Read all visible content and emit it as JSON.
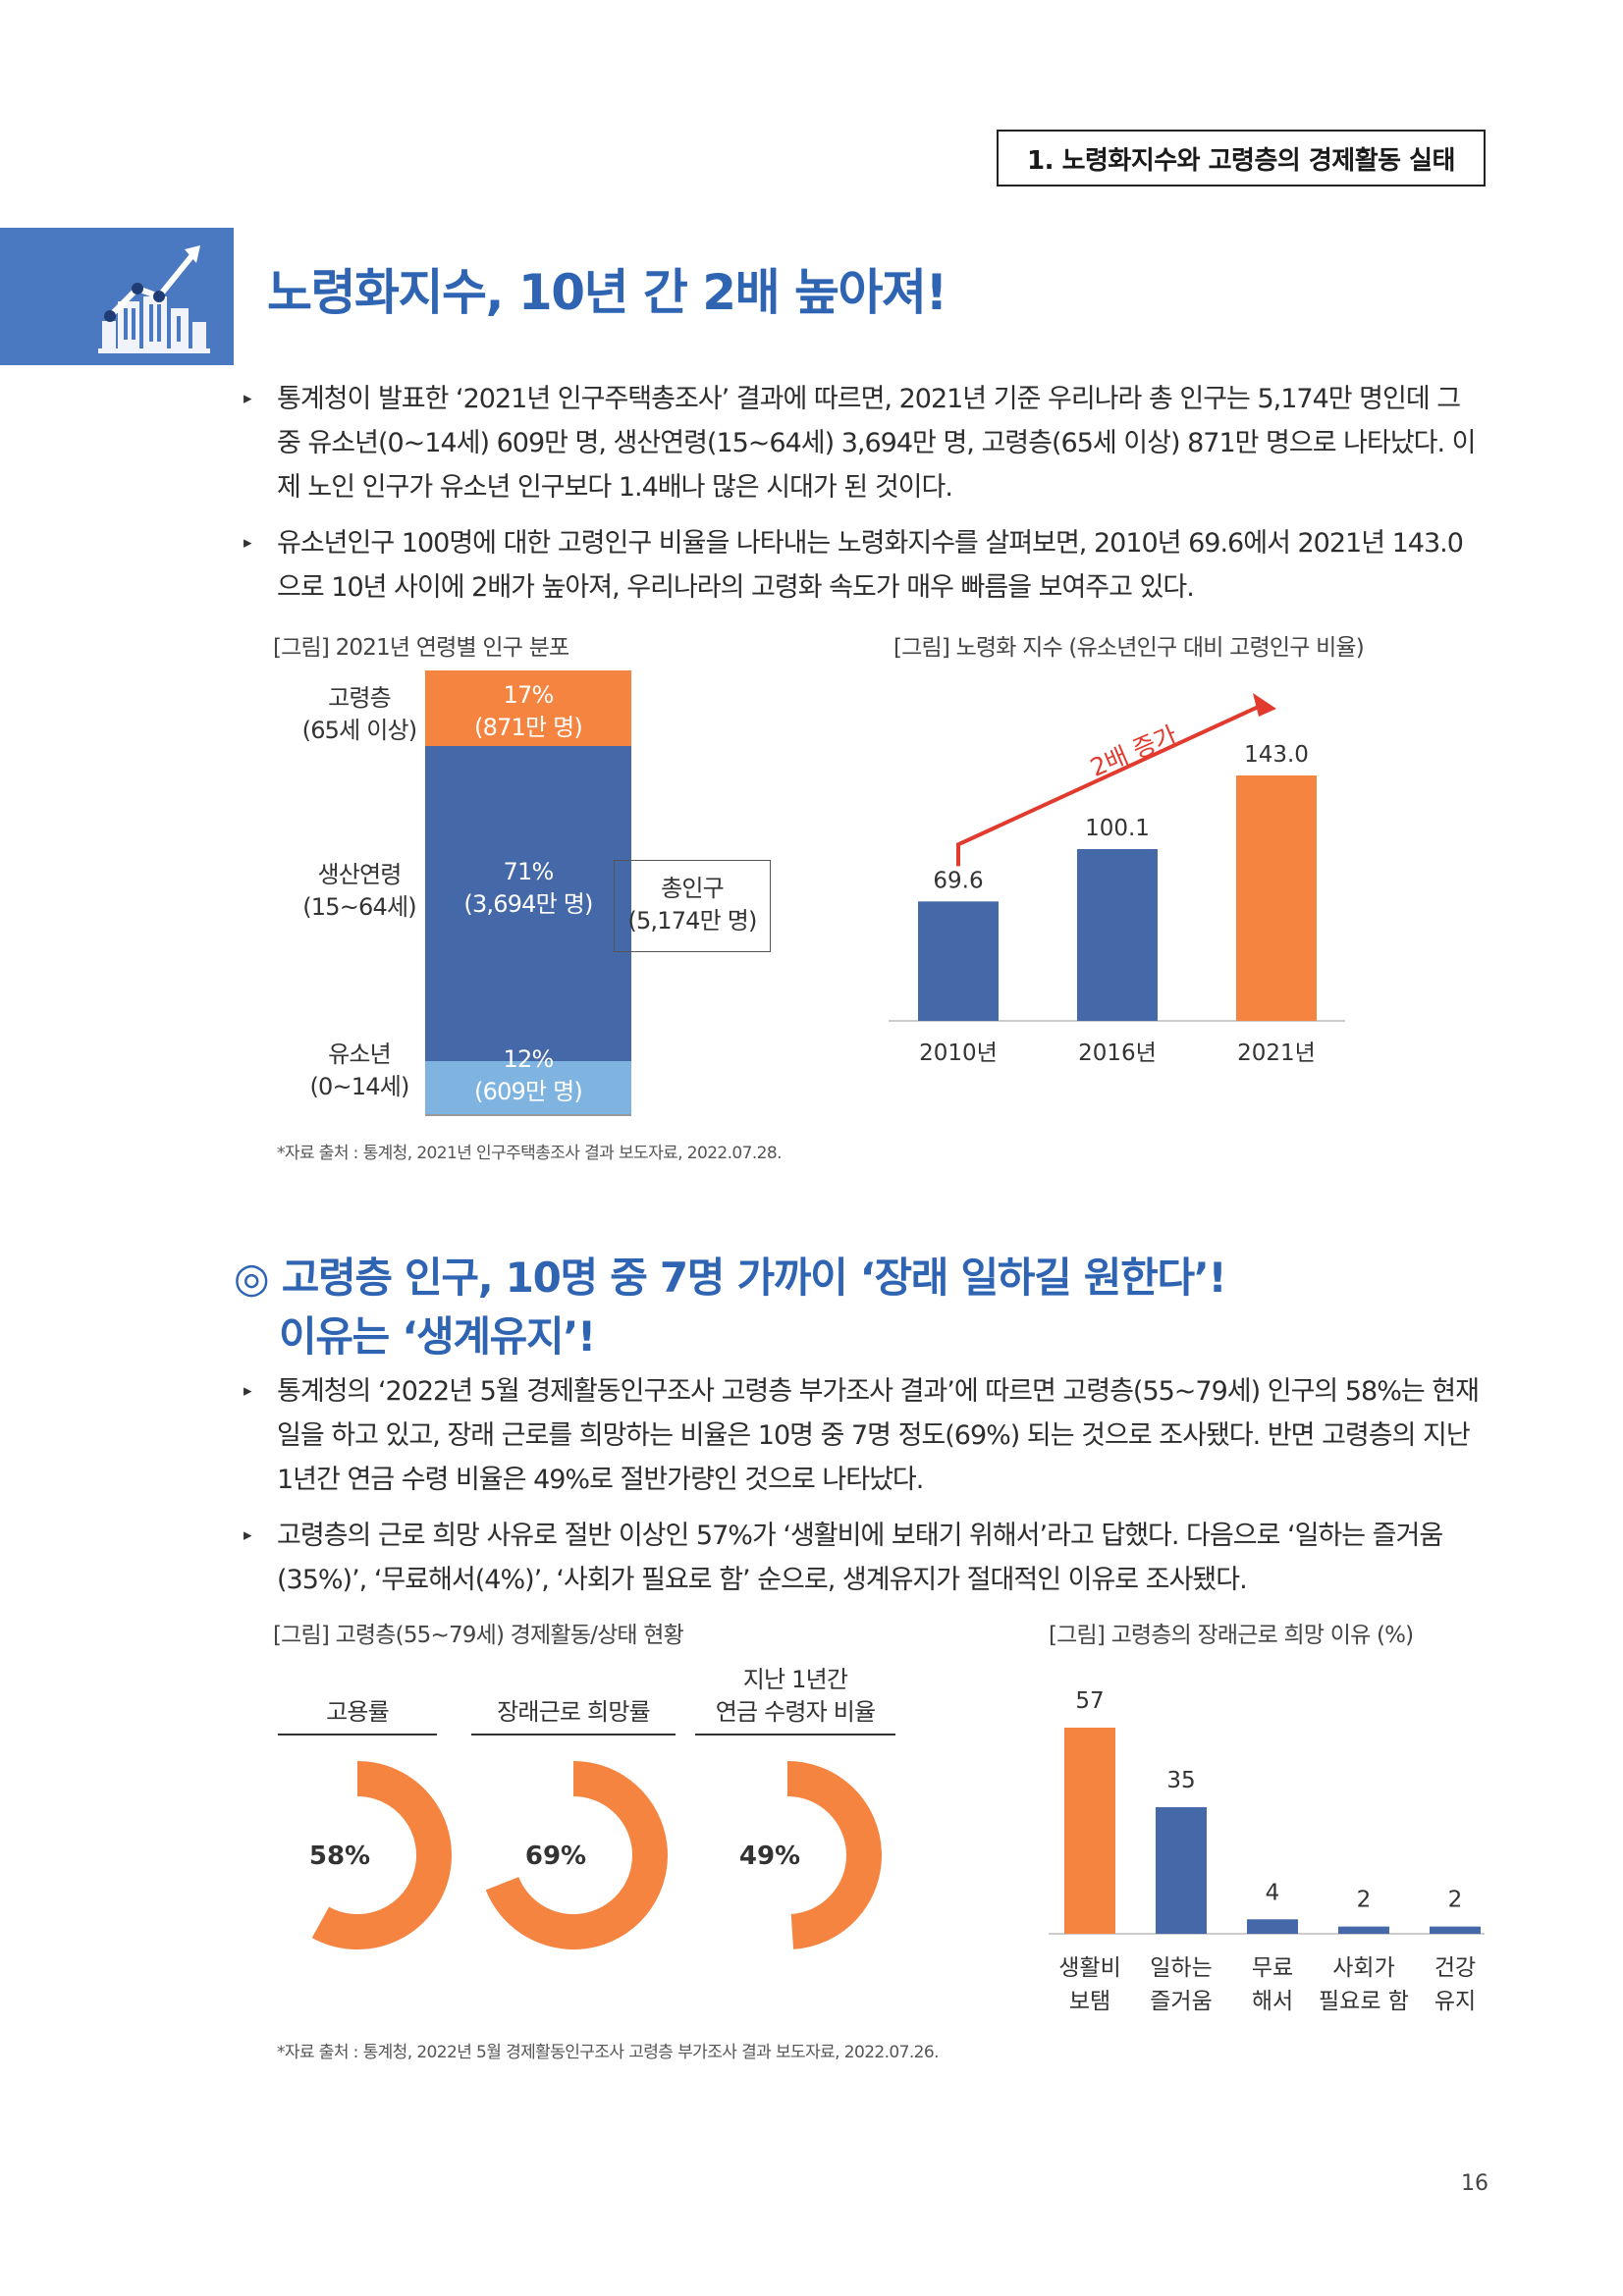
{
  "header": {
    "section_tag": "1. 노령화지수와 고령층의 경제활동 실태",
    "title": "노령화지수, 10년 간 2배 높아져!",
    "title_icon": "building-growth-icon"
  },
  "section1": {
    "bullets": [
      "통계청이 발표한 ‘2021년 인구주택총조사’ 결과에 따르면, 2021년 기준 우리나라 총 인구는 5,174만 명인데 그 중 유소년(0~14세) 609만 명, 생산연령(15~64세) 3,694만 명, 고령층(65세 이상) 871만 명으로 나타났다. 이제 노인 인구가 유소년 인구보다 1.4배나 많은 시대가 된 것이다.",
      "유소년인구 100명에 대한 고령인구 비율을 나타내는 노령화지수를 살펴보면, 2010년 69.6에서 2021년 143.0으로 10년 사이에 2배가 높아져, 우리나라의 고령화 속도가 매우 빠름을 보여주고 있다."
    ],
    "fig1": {
      "caption": "[그림] 2021년 연령별 인구 분포",
      "segments": [
        {
          "label_line1": "고령층",
          "label_line2": "(65세 이상)",
          "pct": "17%",
          "count": "(871만 명)",
          "value": 17,
          "color": "#f4843f",
          "text_color": "#ffffff"
        },
        {
          "label_line1": "생산연령",
          "label_line2": "(15~64세)",
          "pct": "71%",
          "count": "(3,694만 명)",
          "value": 71,
          "color": "#4468a8",
          "text_color": "#ffffff"
        },
        {
          "label_line1": "유소년",
          "label_line2": "(0~14세)",
          "pct": "12%",
          "count": "(609만 명)",
          "value": 12,
          "color": "#7fb3e0",
          "text_color": "#ffffff"
        }
      ],
      "total_line1": "총인구",
      "total_line2": "(5,174만 명)"
    },
    "fig2": {
      "caption": "[그림] 노령화 지수 (유소년인구 대비 고령인구 비율)",
      "annotation": "2배 증가",
      "bar_color": "#4468a8",
      "highlight_color": "#f4843f",
      "arrow_color": "#e23b2e"
    },
    "source": "*자료 출처 : 통계청, 2021년 인구주택총조사 결과 보도자료, 2022.07.28."
  },
  "section2": {
    "title_mark": "◎",
    "title_line1": "고령층 인구, 10명 중 7명 가까이 ‘장래 일하길 원한다’!",
    "title_line2": "이유는 ‘생계유지’!",
    "bullets": [
      "통계청의 ‘2022년 5월 경제활동인구조사 고령층 부가조사 결과’에 따르면 고령층(55~79세) 인구의 58%는 현재 일을 하고 있고, 장래 근로를 희망하는 비율은 10명 중 7명 정도(69%) 되는 것으로 조사됐다. 반면 고령층의 지난 1년간 연금 수령 비율은 49%로 절반가량인 것으로 나타났다.",
      "고령층의 근로 희망 사유로 절반 이상인 57%가 ‘생활비에 보태기 위해서’라고 답했다. 다음으로 ‘일하는 즐거움(35%)’, ‘무료해서(4%)’, ‘사회가 필요로 함’ 순으로, 생계유지가 절대적인 이유로 조사됐다."
    ],
    "fig3": {
      "caption": "[그림] 고령층(55~79세) 경제활동/상태 현황",
      "donut_color": "#f4843f",
      "items": [
        {
          "title_line1": "",
          "title_line2": "고용률",
          "label": "58%",
          "value": 58
        },
        {
          "title_line1": "",
          "title_line2": "장래근로 희망률",
          "label": "69%",
          "value": 69
        },
        {
          "title_line1": "지난 1년간",
          "title_line2": "연금 수령자 비율",
          "label": "49%",
          "value": 49
        }
      ]
    },
    "fig4": {
      "caption": "[그림] 고령층의 장래근로 희망 이유 (%)",
      "highlight_color": "#f4843f",
      "bar_color": "#4468a8"
    },
    "source": "*자료 출처 : 통계청, 2022년 5월 경제활동인구조사 고령층 부가조사 결과 보도자료, 2022.07.26."
  },
  "page_number": "16",
  "chart_data": [
    {
      "type": "bar",
      "categories": [
        "2010년",
        "2016년",
        "2021년"
      ],
      "values": [
        69.6,
        100.1,
        143.0
      ],
      "value_labels": [
        "69.6",
        "100.1",
        "143.0"
      ],
      "title": "[그림] 노령화 지수 (유소년인구 대비 고령인구 비율)",
      "xlabel": "",
      "ylabel": "",
      "ylim": [
        0,
        175
      ],
      "grid": false
    },
    {
      "type": "bar",
      "categories": [
        "생활비 보탬",
        "일하는 즐거움",
        "무료 해서",
        "사회가 필요로 함",
        "건강 유지"
      ],
      "category_lines": [
        [
          "생활비",
          "보탬"
        ],
        [
          "일하는",
          "즐거움"
        ],
        [
          "무료",
          "해서"
        ],
        [
          "사회가",
          "필요로 함"
        ],
        [
          "건강",
          "유지"
        ]
      ],
      "values": [
        57,
        35,
        4,
        2,
        2
      ],
      "value_labels": [
        "57",
        "35",
        "4",
        "2",
        "2"
      ],
      "title": "[그림] 고령층의 장래근로 희망 이유 (%)",
      "xlabel": "",
      "ylabel": "",
      "ylim": [
        0,
        65
      ],
      "grid": false
    }
  ]
}
